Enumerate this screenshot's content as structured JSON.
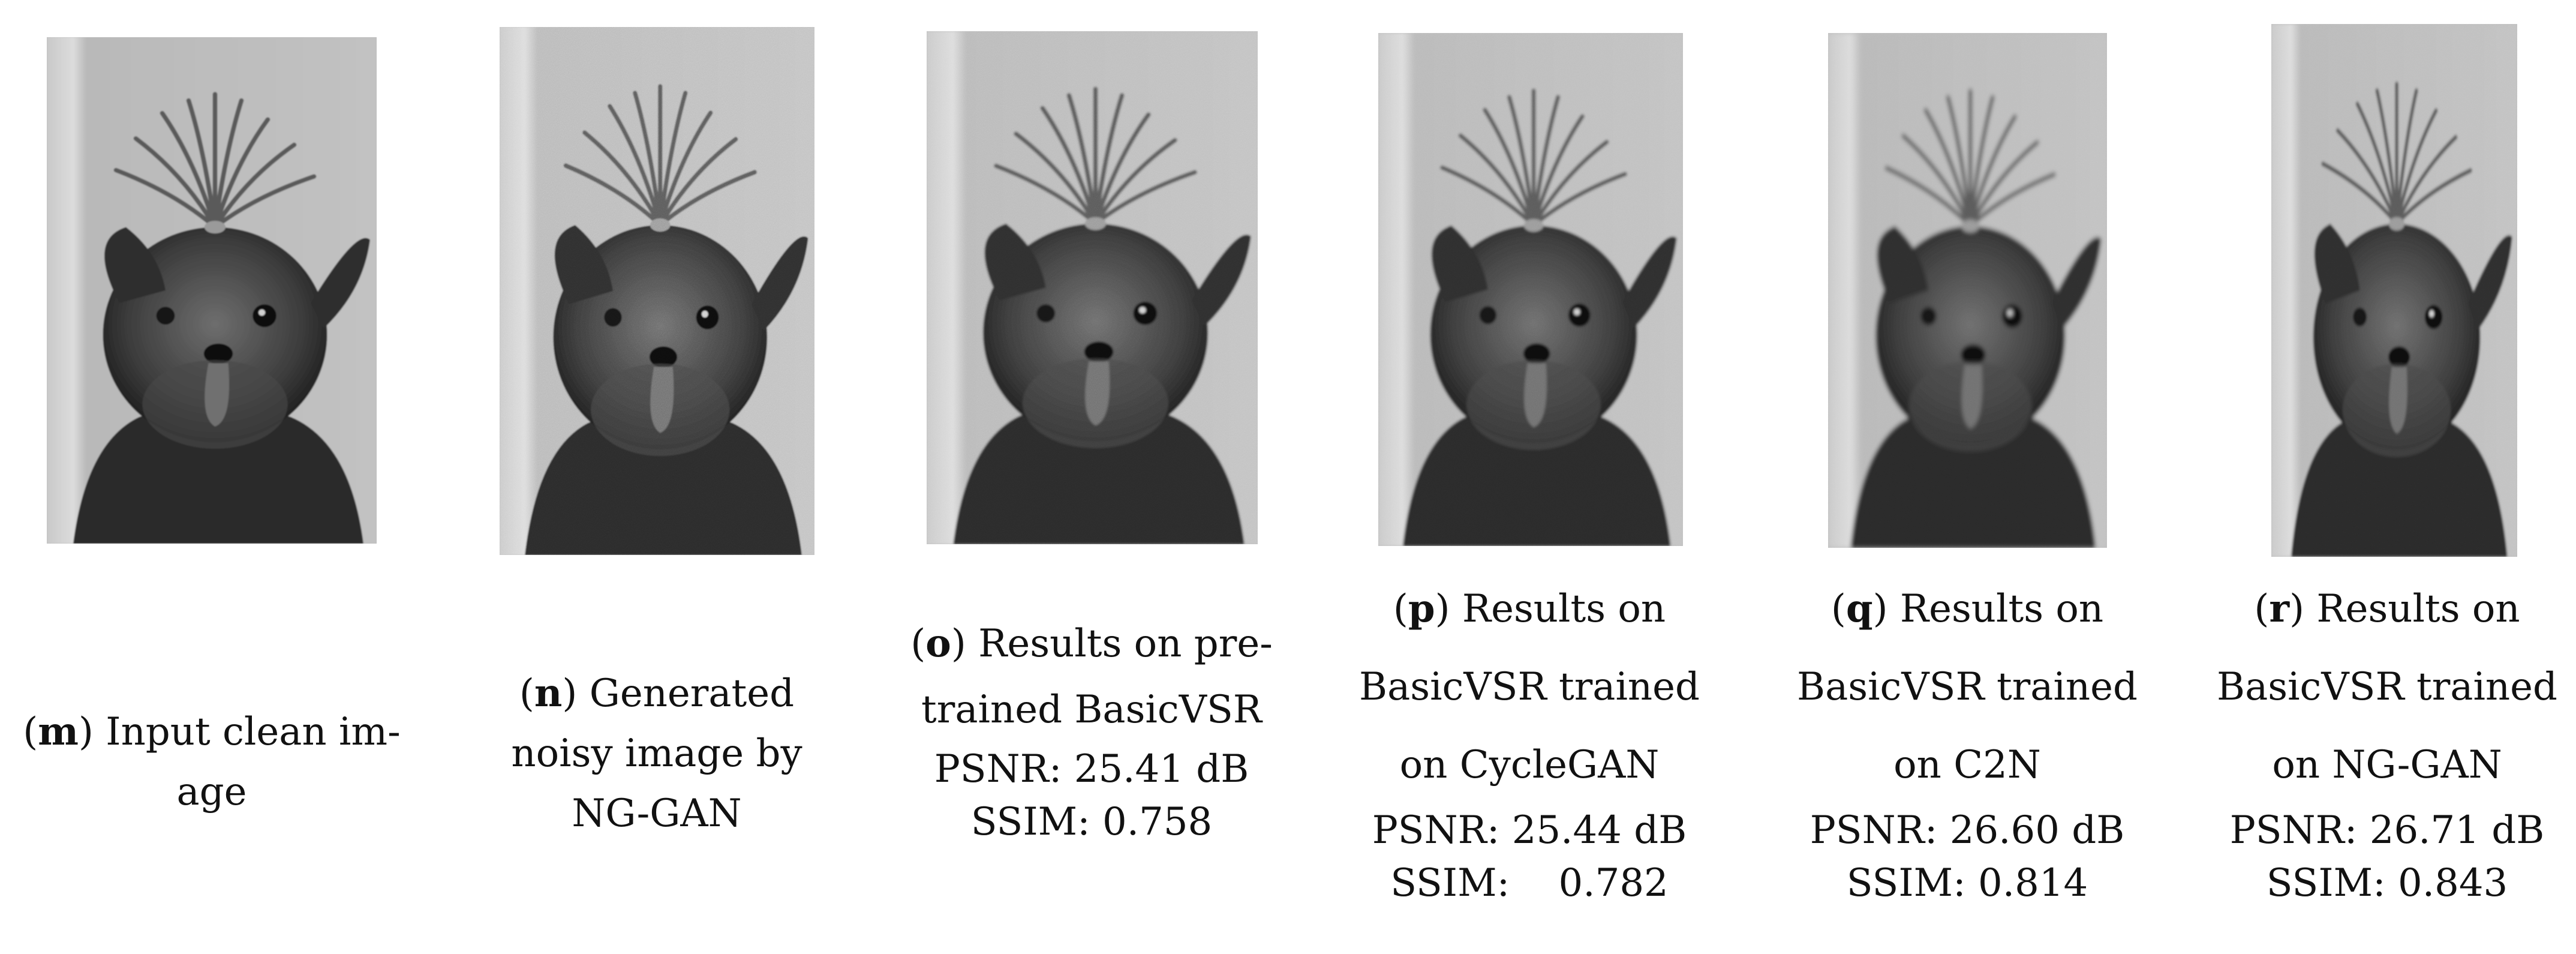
{
  "panels": [
    {
      "id": "m",
      "letter": "m",
      "caption_lines": [
        "Input clean im-",
        "age"
      ],
      "psnr": "",
      "ssim": "",
      "noise_level": 0.0,
      "blur_level": 0.0
    },
    {
      "id": "n",
      "letter": "n",
      "caption_lines": [
        "Generated",
        "noisy image by",
        "NG-GAN"
      ],
      "psnr": "",
      "ssim": "",
      "noise_level": 0.85,
      "blur_level": 0.0
    },
    {
      "id": "o",
      "letter": "o",
      "caption_lines": [
        "Results on pre-",
        "trained BasicVSR"
      ],
      "psnr": "PSNR: 25.41 dB",
      "ssim": "SSIM: 0.758",
      "noise_level": 0.55,
      "blur_level": 0.2
    },
    {
      "id": "p",
      "letter": "p",
      "caption_lines": [
        "Results on",
        "BasicVSR trained",
        "on CycleGAN"
      ],
      "psnr": "PSNR: 25.44 dB",
      "ssim": "SSIM:    0.782",
      "noise_level": 0.35,
      "blur_level": 0.25
    },
    {
      "id": "q",
      "letter": "q",
      "caption_lines": [
        "Results on",
        "BasicVSR trained",
        "on C2N"
      ],
      "psnr": "PSNR: 26.60 dB",
      "ssim": "SSIM: 0.814",
      "noise_level": 0.1,
      "blur_level": 0.6
    },
    {
      "id": "r",
      "letter": "r",
      "caption_lines": [
        "Results on",
        "BasicVSR trained",
        "on NG-GAN"
      ],
      "psnr": "PSNR: 26.71 dB",
      "ssim": "SSIM: 0.843",
      "noise_level": 0.15,
      "blur_level": 0.3
    }
  ]
}
